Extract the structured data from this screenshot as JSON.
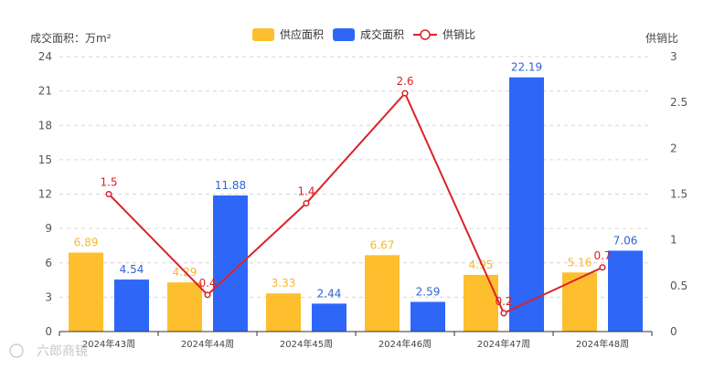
{
  "chart_data": {
    "type": "bar",
    "categories": [
      "2024年43周",
      "2024年44周",
      "2024年45周",
      "2024年46周",
      "2024年47周",
      "2024年48周"
    ],
    "series": [
      {
        "name": "供应面积",
        "type": "bar",
        "color": "#FDBF2D",
        "values": [
          6.89,
          4.29,
          3.33,
          6.67,
          4.95,
          5.16
        ]
      },
      {
        "name": "成交面积",
        "type": "bar",
        "color": "#2E67F8",
        "values": [
          4.54,
          11.88,
          2.44,
          2.59,
          22.19,
          7.06
        ]
      },
      {
        "name": "供销比",
        "type": "line",
        "color": "#D9232B",
        "axis": "right",
        "values": [
          1.5,
          0.4,
          1.4,
          2.6,
          0.2,
          0.7
        ]
      }
    ],
    "ylabel": "成交面积：万m²",
    "y2label": "供销比",
    "ylim": [
      0,
      24
    ],
    "y2lim": [
      0,
      3
    ],
    "yticks": [
      0,
      3,
      6,
      9,
      12,
      15,
      18,
      21,
      24
    ],
    "y2ticks": [
      0,
      0.5,
      1,
      1.5,
      2,
      2.5,
      3
    ],
    "grid": true,
    "legend": "top-center"
  },
  "watermark": "六郎商镜"
}
